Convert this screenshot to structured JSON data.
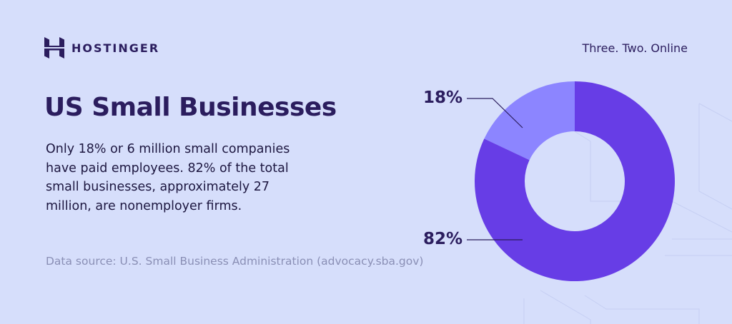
{
  "brand": {
    "name": "HOSTINGER",
    "logo_icon": "hostinger-h-logo-icon",
    "tagline": "Three. Two. Online"
  },
  "content": {
    "title": "US Small Businesses",
    "description": "Only 18% or 6 million small companies have paid employees. 82% of the total small businesses, approximately 27 million, are nonemployer firms.",
    "source": "Data source: U.S. Small Business Administration (advocacy.sba.gov)"
  },
  "colors": {
    "background": "#d6defb",
    "primary_dark": "#2b1d5e",
    "slice_nonemployer": "#673de6",
    "slice_employer": "#8c85ff",
    "source_text": "#8a8fb5"
  },
  "chart_data": {
    "type": "pie",
    "subtype": "donut",
    "title": "US Small Businesses",
    "categories": [
      "Firms with paid employees",
      "Nonemployer firms"
    ],
    "values": [
      18,
      82
    ],
    "value_labels": [
      "18%",
      "82%"
    ],
    "counts_millions": [
      6,
      27
    ],
    "colors": [
      "#8c85ff",
      "#673de6"
    ],
    "start_angle": "12 o'clock",
    "legend": "none (callout labels on left)"
  },
  "labels": {
    "employer_pct": "18%",
    "nonemployer_pct": "82%"
  }
}
